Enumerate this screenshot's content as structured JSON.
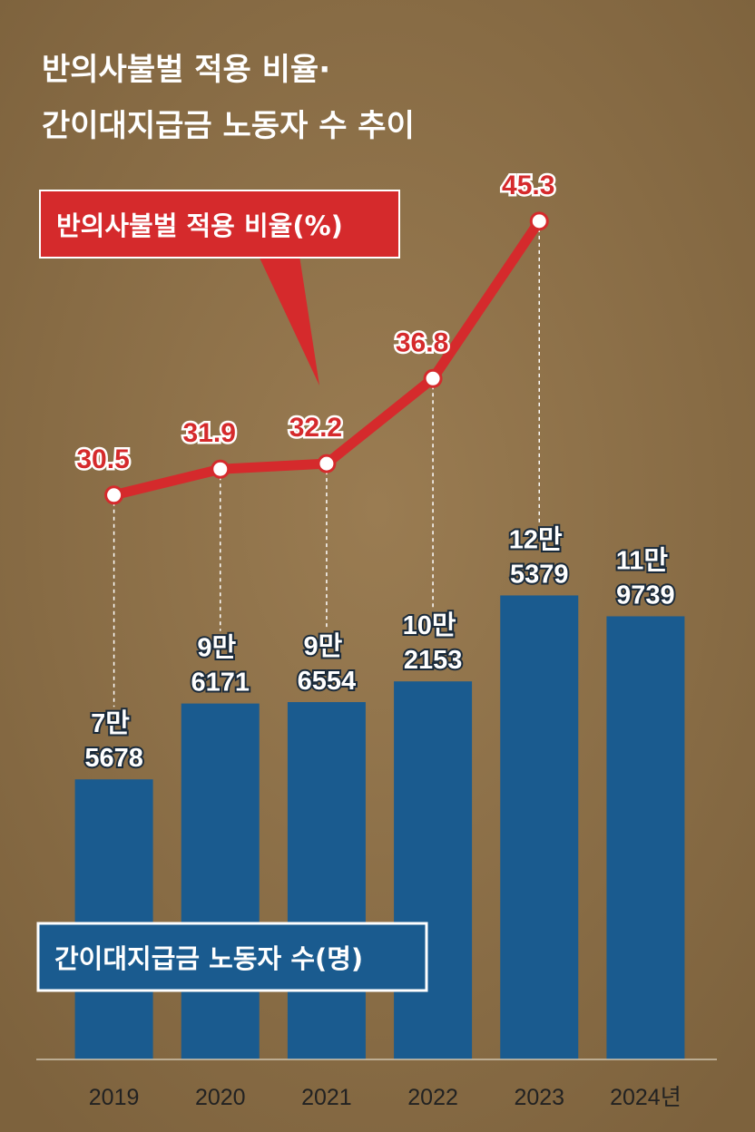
{
  "chart_data": {
    "type": "bar",
    "title": [
      "반의사불벌 적용 비율·",
      "간이대지급금 노동자 수 추이"
    ],
    "categories": [
      "2019",
      "2020",
      "2021",
      "2022",
      "2023",
      "2024년"
    ],
    "series": [
      {
        "name": "간이대지급금 노동자 수(명)",
        "type": "bar",
        "color": "#1a5b8f",
        "values": [
          75678,
          96171,
          96554,
          102153,
          125379,
          119739
        ],
        "value_labels": [
          "7만 5678",
          "9만 6171",
          "9만 6554",
          "10만 2153",
          "12만 5379",
          "11만 9739"
        ]
      },
      {
        "name": "반의사불벌 적용 비율(%)",
        "type": "line",
        "axis": "y2",
        "color": "#d52a2c",
        "values": [
          30.5,
          31.9,
          32.2,
          36.8,
          45.3,
          null
        ]
      }
    ],
    "ylim": [
      0,
      250000
    ],
    "y2lim": [
      0,
      50
    ]
  }
}
